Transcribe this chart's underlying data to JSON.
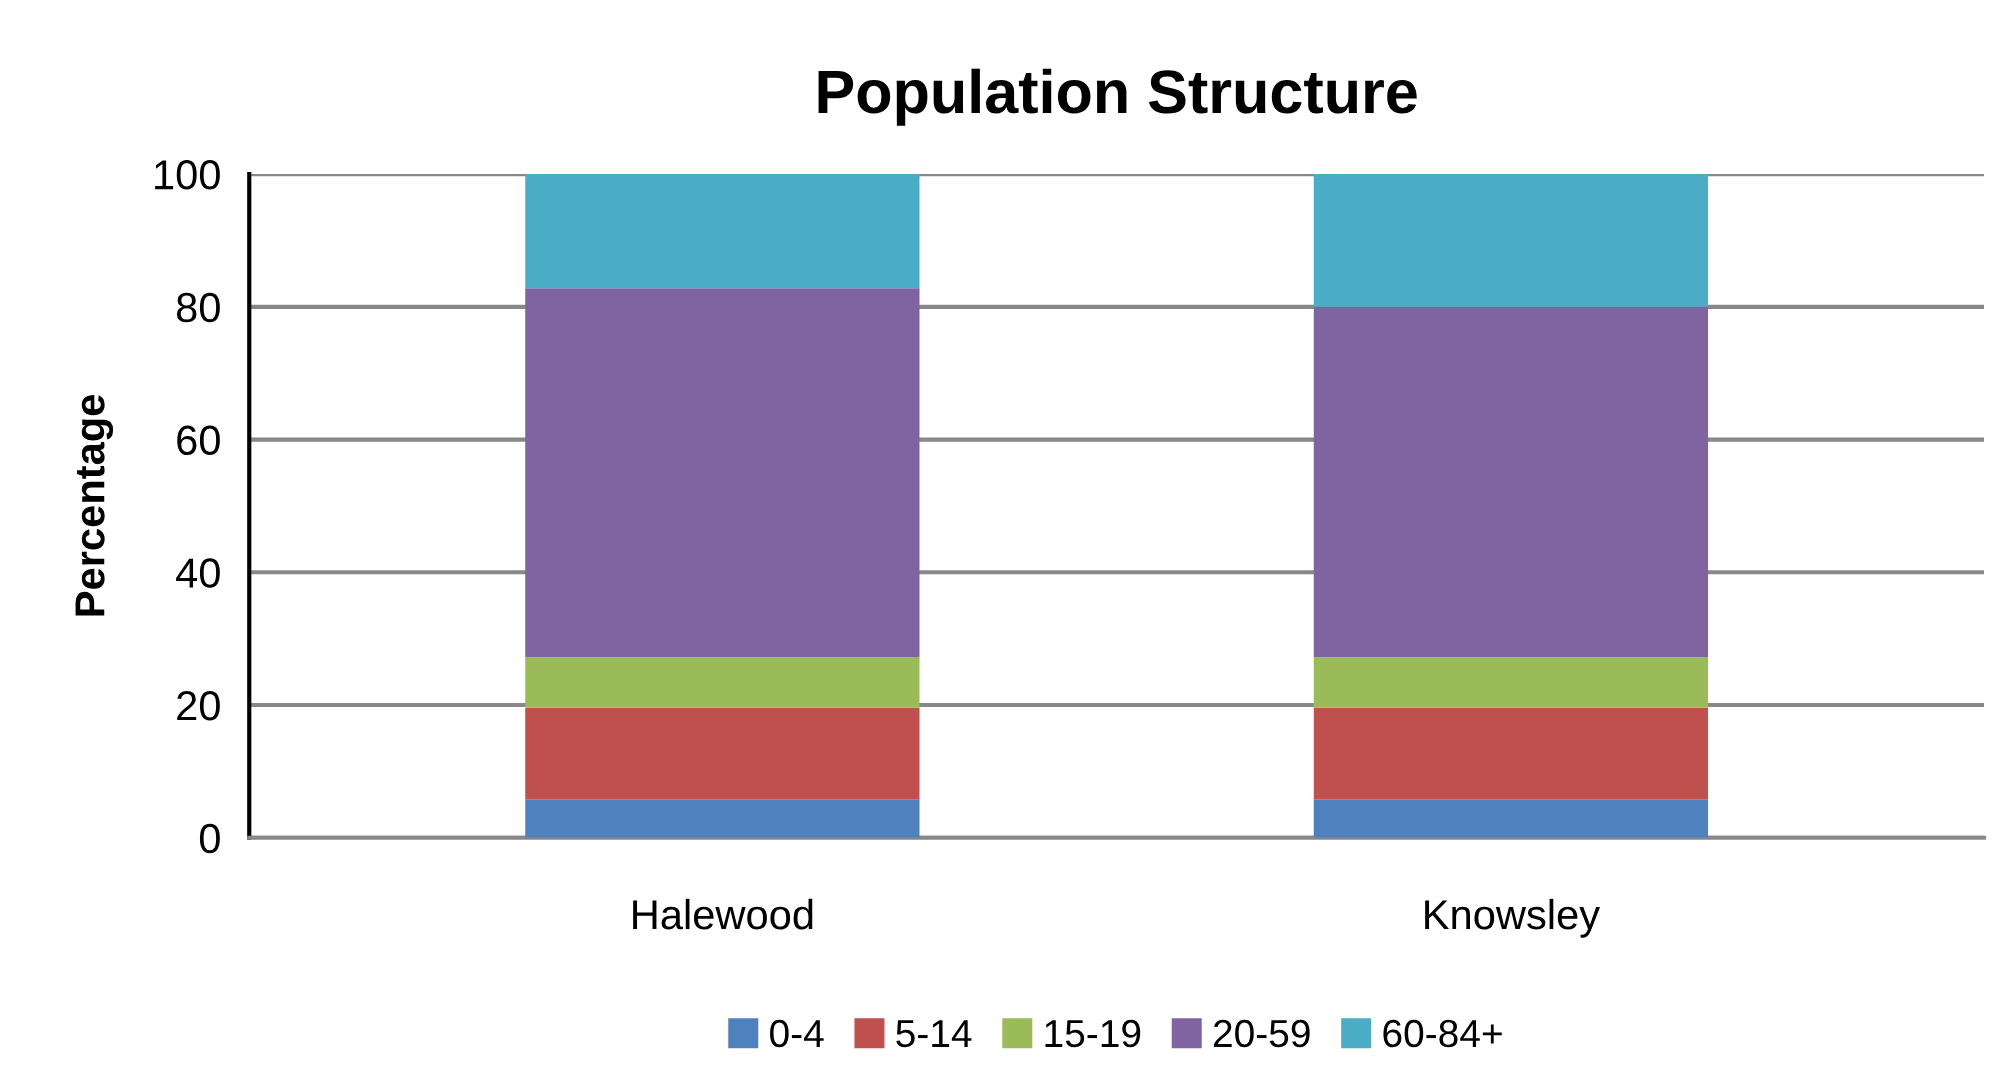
{
  "chart_data": {
    "type": "bar",
    "title": "Population Structure",
    "ylabel": "Percentage",
    "categories": [
      "Halewood",
      "Knowsley"
    ],
    "stacked": true,
    "series": [
      {
        "name": "0-4",
        "color": "#4f81bd",
        "values": [
          5.8,
          5.8
        ]
      },
      {
        "name": "5-14",
        "color": "#c0504d",
        "values": [
          13.8,
          13.8
        ]
      },
      {
        "name": "15-19",
        "color": "#9bbb59",
        "values": [
          7.6,
          7.6
        ]
      },
      {
        "name": "20-59",
        "color": "#8064a2",
        "values": [
          55.6,
          52.8
        ]
      },
      {
        "name": "60-84+",
        "color": "#4bacc6",
        "values": [
          17.2,
          20.0
        ]
      }
    ],
    "ylim": [
      0,
      100
    ],
    "yticks": [
      0,
      20,
      40,
      60,
      80,
      100
    ],
    "grid": "y",
    "legend": "bottom"
  }
}
